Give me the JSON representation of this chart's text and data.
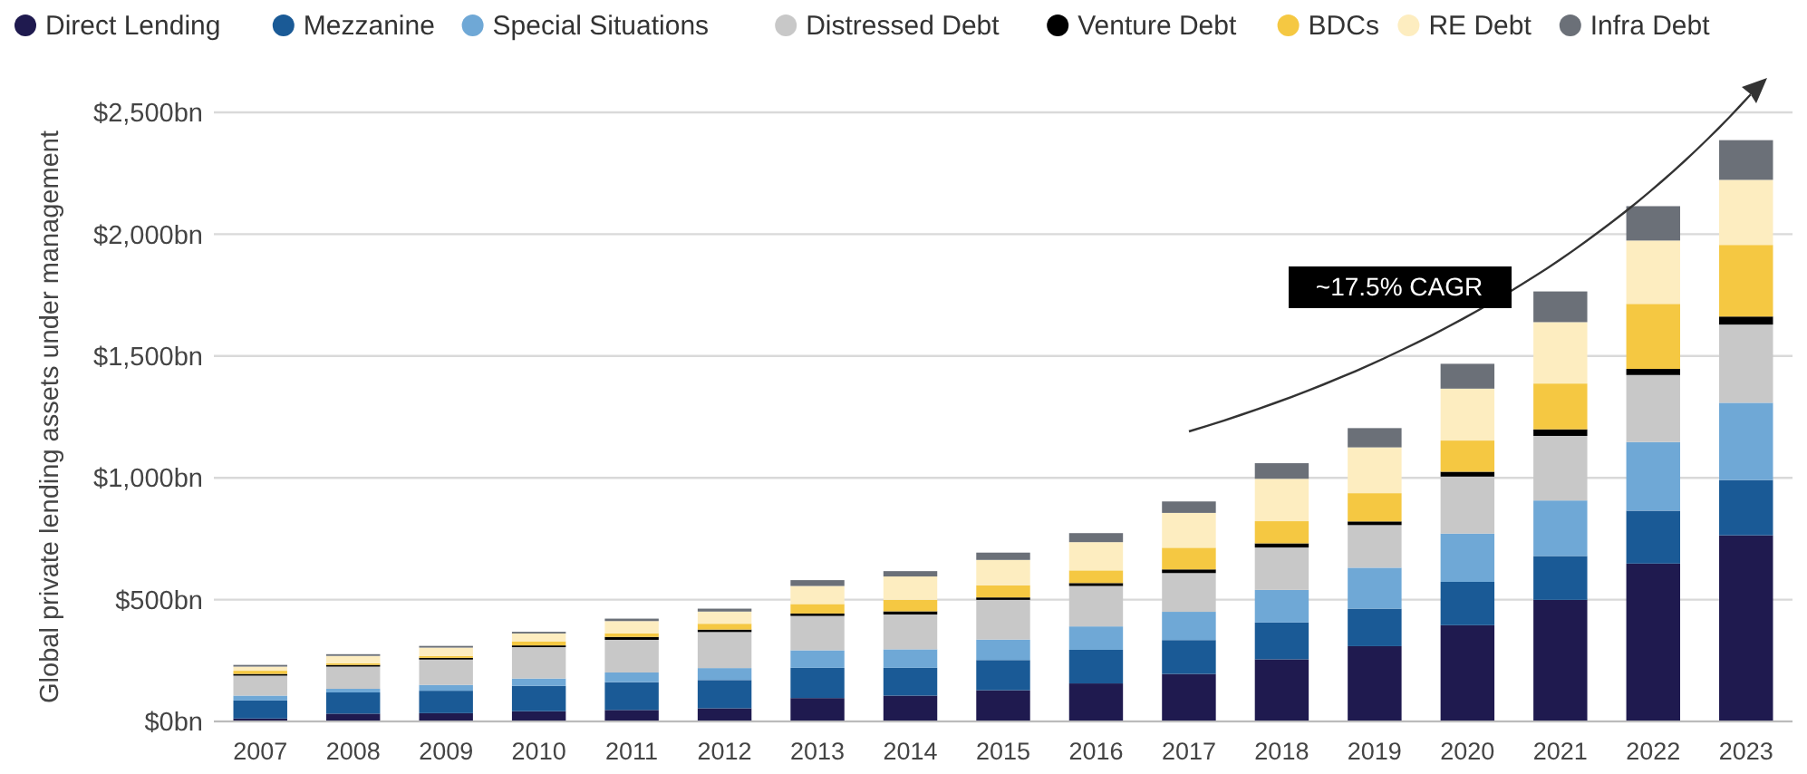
{
  "chart_data": {
    "type": "bar",
    "stacked": true,
    "ylabel": "Global private lending assets under management",
    "categories": [
      "2007",
      "2008",
      "2009",
      "2010",
      "2011",
      "2012",
      "2013",
      "2014",
      "2015",
      "2016",
      "2017",
      "2018",
      "2019",
      "2020",
      "2021",
      "2022",
      "2023"
    ],
    "series": [
      {
        "name": "Direct Lending",
        "color": "#1f1a4f",
        "values": [
          12,
          32,
          34,
          42,
          47,
          54,
          96,
          106,
          128,
          156,
          195,
          255,
          309,
          395,
          499,
          648,
          764
        ]
      },
      {
        "name": "Mezzanine",
        "color": "#1a5a96",
        "values": [
          74,
          87,
          92,
          104,
          114,
          116,
          124,
          114,
          124,
          138,
          139,
          151,
          154,
          178,
          180,
          217,
          227
        ]
      },
      {
        "name": "Special Situations",
        "color": "#6fa8d6",
        "values": [
          20,
          15,
          24,
          30,
          40,
          49,
          72,
          76,
          84,
          96,
          116,
          134,
          168,
          198,
          228,
          282,
          317
        ]
      },
      {
        "name": "Distressed Debt",
        "color": "#c8c8c8",
        "values": [
          82,
          91,
          104,
          129,
          134,
          148,
          141,
          143,
          163,
          166,
          159,
          174,
          175,
          234,
          265,
          275,
          321
        ]
      },
      {
        "name": "Venture Debt",
        "color": "#000000",
        "values": [
          7,
          7,
          7,
          7,
          12,
          10,
          10,
          13,
          10,
          12,
          15,
          17,
          15,
          20,
          27,
          25,
          33
        ]
      },
      {
        "name": "BDCs",
        "color": "#f5c842",
        "values": [
          13,
          7,
          7,
          17,
          15,
          24,
          39,
          47,
          50,
          52,
          89,
          91,
          116,
          128,
          188,
          267,
          294
        ]
      },
      {
        "name": "RE Debt",
        "color": "#fdedc0",
        "values": [
          17,
          30,
          35,
          32,
          50,
          50,
          74,
          96,
          104,
          116,
          143,
          174,
          188,
          213,
          252,
          260,
          267
        ]
      },
      {
        "name": "Infra Debt",
        "color": "#6b7078",
        "values": [
          7,
          7,
          7,
          7,
          10,
          12,
          24,
          22,
          30,
          37,
          47,
          64,
          79,
          102,
          126,
          141,
          163
        ]
      }
    ],
    "ylim": [
      0,
      2500
    ],
    "yticks": [
      {
        "value": 0,
        "label": "$0bn"
      },
      {
        "value": 500,
        "label": "$500bn"
      },
      {
        "value": 1000,
        "label": "$1,000bn"
      },
      {
        "value": 1500,
        "label": "$1,500bn"
      },
      {
        "value": 2000,
        "label": "$2,000bn"
      },
      {
        "value": 2500,
        "label": "$2,500bn"
      }
    ],
    "grid": "y",
    "legend": "top",
    "annotations": [
      "~17.5% CAGR"
    ]
  }
}
